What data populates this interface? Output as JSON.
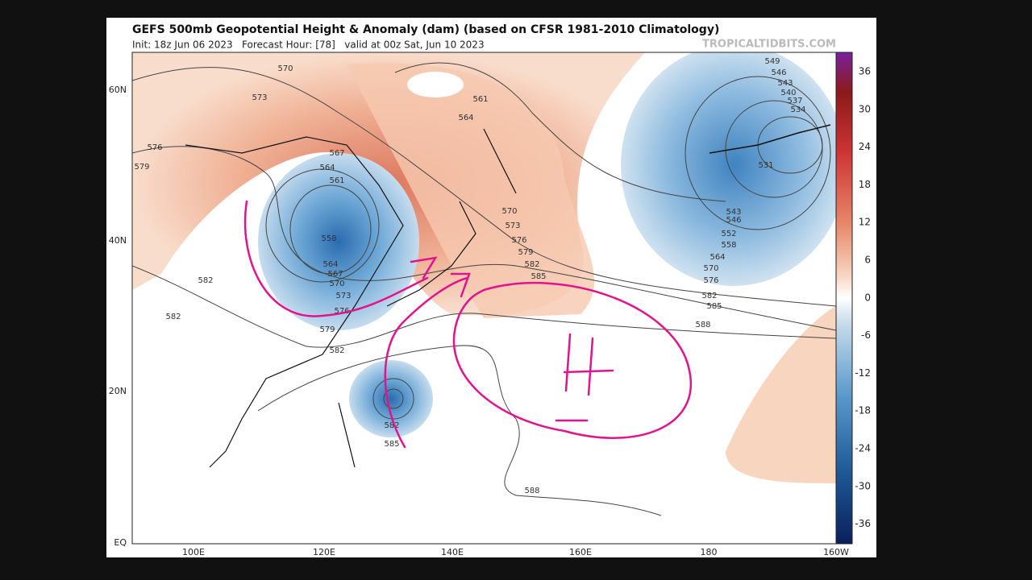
{
  "header": {
    "title": "GEFS 500mb Geopotential Height & Anomaly (dam) (based on CFSR 1981-2010 Climatology)",
    "subtitle": "Init: 18z Jun 06 2023   Forecast Hour: [78]   valid at 00z Sat, Jun 10 2023",
    "brand": "TROPICALTIDBITS.COM"
  },
  "axes": {
    "lon_labels": [
      "100E",
      "120E",
      "140E",
      "160E",
      "180",
      "160W"
    ],
    "lat_labels": [
      "60N",
      "40N",
      "20N",
      "EQ"
    ]
  },
  "colorbar": {
    "labels": [
      "36",
      "30",
      "24",
      "18",
      "12",
      "6",
      "0",
      "-6",
      "-12",
      "-18",
      "-24",
      "-30",
      "-36"
    ]
  },
  "contour_labels": [
    "570",
    "573",
    "576",
    "579",
    "567",
    "564",
    "561",
    "558",
    "564",
    "567",
    "570",
    "573",
    "576",
    "579",
    "582",
    "582",
    "582",
    "561",
    "564",
    "570",
    "573",
    "576",
    "579",
    "582",
    "585",
    "549",
    "546",
    "543",
    "540",
    "537",
    "534",
    "531",
    "543",
    "546",
    "552",
    "558",
    "564",
    "570",
    "576",
    "582",
    "585",
    "588",
    "582",
    "585",
    "588"
  ]
}
